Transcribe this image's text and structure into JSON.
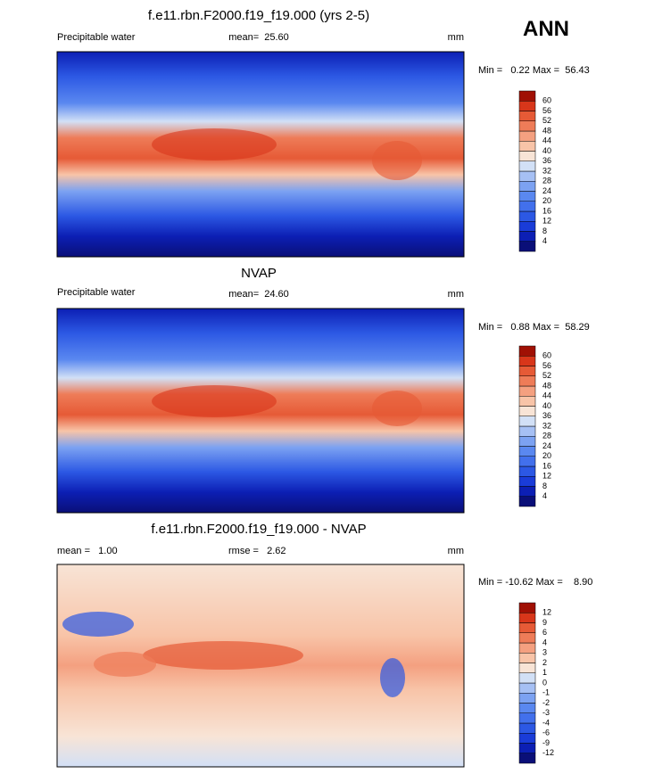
{
  "header": {
    "season": "ANN"
  },
  "panels": [
    {
      "title": "f.e11.rbn.F2000.f19_f19.000 (yrs 2-5)",
      "left_label": "Precipitable water",
      "center_label": "mean=  25.60",
      "units": "mm",
      "min_max": "Min =   0.22 Max =  56.43",
      "colorbar": {
        "labels": [
          "4",
          "8",
          "12",
          "16",
          "20",
          "24",
          "28",
          "32",
          "36",
          "40",
          "44",
          "48",
          "52",
          "56",
          "60"
        ]
      }
    },
    {
      "title": "NVAP",
      "left_label": "Precipitable water",
      "center_label": "mean=  24.60",
      "units": "mm",
      "min_max": "Min =   0.88 Max =  58.29",
      "colorbar": {
        "labels": [
          "4",
          "8",
          "12",
          "16",
          "20",
          "24",
          "28",
          "32",
          "36",
          "40",
          "44",
          "48",
          "52",
          "56",
          "60"
        ]
      }
    },
    {
      "title": "f.e11.rbn.F2000.f19_f19.000 - NVAP",
      "left_label": "mean =   1.00",
      "center_label": "rmse =   2.62",
      "units": "mm",
      "min_max": "Min = -10.62 Max =    8.90",
      "colorbar": {
        "labels": [
          "-12",
          "-9",
          "-6",
          "-4",
          "-3",
          "-2",
          "-1",
          "0",
          "1",
          "2",
          "3",
          "4",
          "6",
          "9",
          "12"
        ]
      }
    }
  ],
  "colorbar_colors": [
    "#0a0f78",
    "#0c1fb4",
    "#1a3cd8",
    "#2c58e4",
    "#4270ec",
    "#5a88f0",
    "#7ca2f2",
    "#a6c0f4",
    "#d2e0f6",
    "#f8e4d6",
    "#f8c4a8",
    "#f4a080",
    "#ee7c58",
    "#e65a36",
    "#d8361a",
    "#a01004"
  ]
}
